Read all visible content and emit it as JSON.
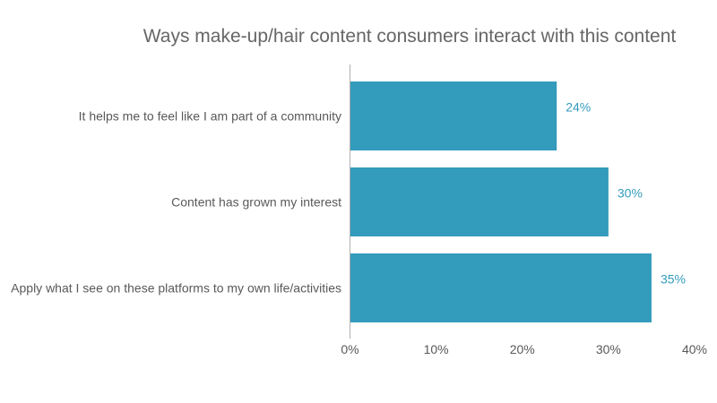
{
  "chart_data": {
    "type": "bar",
    "orientation": "horizontal",
    "title": "Ways make-up/hair content consumers interact with this content",
    "categories": [
      "It helps me to feel like I am part of a community",
      "Content has grown my interest",
      "Apply what I see on these platforms to my own life/activities"
    ],
    "values": [
      24,
      30,
      35
    ],
    "data_labels": [
      "24%",
      "30%",
      "35%"
    ],
    "xlim": [
      0,
      40
    ],
    "x_ticks": [
      0,
      10,
      20,
      30,
      40
    ],
    "x_tick_labels": [
      "0%",
      "10%",
      "20%",
      "30%",
      "40%"
    ],
    "xlabel": "",
    "ylabel": "",
    "grid": false,
    "legend": "none",
    "bar_color": "#339bbc",
    "label_color": "#339bbc"
  }
}
